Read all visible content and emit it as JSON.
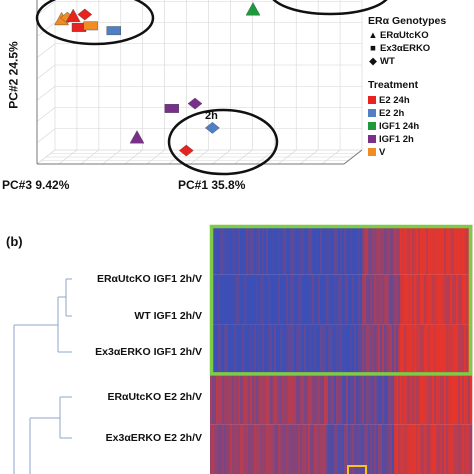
{
  "chart_data": [
    {
      "type": "scatter",
      "panel": "",
      "xlabel": "PC#1 35.8%",
      "ylabel": "PC#2 24.5%",
      "zlabel": "PC#3 9.42%",
      "legend": {
        "genotype_title": "ERα Genotypes",
        "genotypes": [
          {
            "label": "ERαUtcKO",
            "marker": "triangle"
          },
          {
            "label": "Ex3αERKO",
            "marker": "square"
          },
          {
            "label": "WT",
            "marker": "diamond"
          }
        ],
        "treatment_title": "Treatment",
        "treatments": [
          {
            "label": "E2 24h",
            "color": "#e8231f"
          },
          {
            "label": "E2 2h",
            "color": "#4f7fc4"
          },
          {
            "label": "IGF1 24h",
            "color": "#1e9a3c"
          },
          {
            "label": "IGF1 2h",
            "color": "#7a2f8c"
          },
          {
            "label": "V",
            "color": "#ef8c23"
          }
        ]
      },
      "annotations": [
        {
          "text": "2h"
        }
      ],
      "points": [
        {
          "genotype": "ERαUtcKO",
          "treatment": "V",
          "pc1": 4,
          "pc2": 93
        },
        {
          "genotype": "WT",
          "treatment": "V",
          "pc1": 6,
          "pc2": 94
        },
        {
          "genotype": "ERαUtcKO",
          "treatment": "E2 24h",
          "pc1": 8,
          "pc2": 95
        },
        {
          "genotype": "WT",
          "treatment": "E2 24h",
          "pc1": 12,
          "pc2": 96
        },
        {
          "genotype": "Ex3αERKO",
          "treatment": "E2 24h",
          "pc1": 10,
          "pc2": 88
        },
        {
          "genotype": "Ex3αERKO",
          "treatment": "V",
          "pc1": 14,
          "pc2": 89
        },
        {
          "genotype": "Ex3αERKO",
          "treatment": "E2 2h",
          "pc1": 22,
          "pc2": 86
        },
        {
          "genotype": "ERαUtcKO",
          "treatment": "IGF1 24h",
          "pc1": 70,
          "pc2": 99
        },
        {
          "genotype": "Ex3αERKO",
          "treatment": "IGF1 2h",
          "pc1": 42,
          "pc2": 38
        },
        {
          "genotype": "WT",
          "treatment": "IGF1 2h",
          "pc1": 50,
          "pc2": 41
        },
        {
          "genotype": "WT",
          "treatment": "E2 2h",
          "pc1": 56,
          "pc2": 26
        },
        {
          "genotype": "ERαUtcKO",
          "treatment": "IGF1 2h",
          "pc1": 30,
          "pc2": 20
        },
        {
          "genotype": "WT",
          "treatment": "E2 24h",
          "pc1": 47,
          "pc2": 12
        }
      ]
    },
    {
      "type": "heatmap",
      "panel": "(b)",
      "rows": [
        "ERαUtcKO IGF1 2h/V",
        "WT IGF1 2h/V",
        "Ex3αERKO IGF1 2h/V",
        "ERαUtcKO E2 2h/V",
        "Ex3αERKO E2 2h/V"
      ],
      "colors": {
        "low": "#3b4fb6",
        "high": "#e4362c",
        "mid": "#8a4a9a"
      },
      "highlight_color": "#7ecb45"
    }
  ]
}
